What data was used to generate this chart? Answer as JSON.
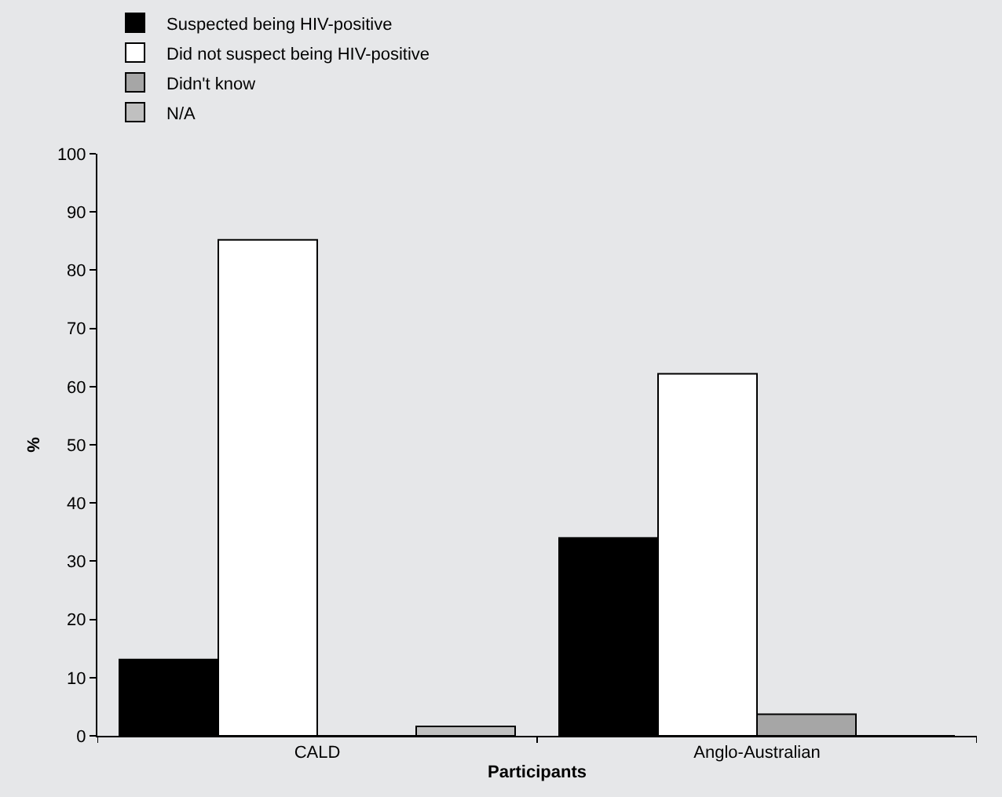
{
  "chart_data": {
    "type": "bar",
    "xlabel": "Participants",
    "ylabel": "%",
    "categories": [
      "CALD",
      "Anglo-Australian"
    ],
    "series": [
      {
        "name": "Suspected being HIV-positive",
        "color": "#000000",
        "values": [
          13.1,
          34.0
        ]
      },
      {
        "name": "Did not suspect being HIV-positive",
        "color": "#ffffff",
        "values": [
          85.2,
          62.2
        ]
      },
      {
        "name": "Didn't know",
        "color": "#a6a6a6",
        "values": [
          0,
          3.7
        ]
      },
      {
        "name": "N/A",
        "color": "#c0c0c0",
        "values": [
          1.6,
          0
        ]
      }
    ],
    "ylim": [
      0,
      100
    ],
    "yticks": [
      0,
      10,
      20,
      30,
      40,
      50,
      60,
      70,
      80,
      90,
      100
    ],
    "grid": false,
    "legend": "top"
  }
}
